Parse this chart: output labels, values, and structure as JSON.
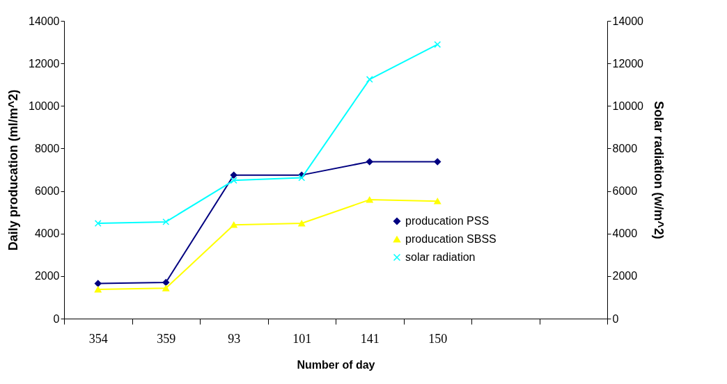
{
  "chart_data": {
    "type": "line",
    "xlabel": "Number of day",
    "ylabel": "Daily producation (ml/m^2)",
    "y2label": "Solar radiation (w/m^2)",
    "categories": [
      "354",
      "359",
      "93",
      "101",
      "141",
      "150",
      null,
      null
    ],
    "series": [
      {
        "name": "producation PSS",
        "color": "#000080",
        "marker": "diamond",
        "values": [
          1650,
          1700,
          6750,
          6750,
          7380,
          7380,
          null,
          null
        ]
      },
      {
        "name": "producation SBSS",
        "color": "#ffff00",
        "marker": "triangle",
        "values": [
          1370,
          1430,
          4410,
          4480,
          5590,
          5520,
          null,
          null
        ]
      },
      {
        "name": "solar radiation",
        "color": "#00ffff",
        "marker": "cross",
        "axis": "y2",
        "values": [
          4480,
          4550,
          6500,
          6620,
          11250,
          12890,
          null,
          null
        ]
      }
    ],
    "ylim": [
      0,
      14000
    ],
    "yticks": [
      0,
      2000,
      4000,
      6000,
      8000,
      10000,
      12000,
      14000
    ],
    "y2lim": [
      0,
      14000
    ],
    "y2ticks": [
      0,
      2000,
      4000,
      6000,
      8000,
      10000,
      12000,
      14000
    ],
    "grid": false,
    "legend": "bottom right",
    "line_style": "solid"
  }
}
